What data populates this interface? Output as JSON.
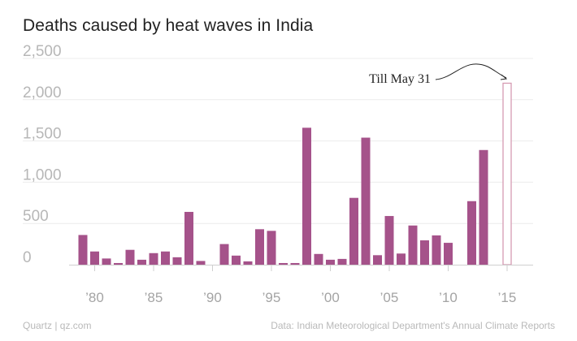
{
  "chart_data": {
    "type": "bar",
    "title": "Deaths caused by heat waves in India",
    "xlabel": "",
    "ylabel": "",
    "ylim": [
      0,
      2500
    ],
    "yticks": [
      0,
      500,
      1000,
      1500,
      2000,
      2500
    ],
    "ytick_labels": [
      "0",
      "500",
      "1,000",
      "1,500",
      "2,000",
      "2,500"
    ],
    "xticks": [
      1980,
      1985,
      1990,
      1995,
      2000,
      2005,
      2010,
      2015
    ],
    "xtick_labels": [
      "’80",
      "’85",
      "’90",
      "’95",
      "’00",
      "’05",
      "’10",
      "’15"
    ],
    "years": [
      1979,
      1980,
      1981,
      1982,
      1983,
      1984,
      1985,
      1986,
      1987,
      1988,
      1989,
      1990,
      1991,
      1992,
      1993,
      1994,
      1995,
      1996,
      1997,
      1998,
      1999,
      2000,
      2001,
      2002,
      2003,
      2004,
      2005,
      2006,
      2007,
      2008,
      2009,
      2010,
      2011,
      2012,
      2013,
      2014,
      2015
    ],
    "values": [
      360,
      160,
      75,
      20,
      180,
      60,
      140,
      160,
      90,
      640,
      45,
      0,
      250,
      110,
      40,
      430,
      410,
      20,
      20,
      1660,
      130,
      60,
      70,
      810,
      1540,
      115,
      590,
      135,
      475,
      295,
      355,
      265,
      0,
      770,
      1390,
      0,
      2200
    ],
    "highlight": {
      "year": 2015,
      "label": "Till May 31"
    },
    "grid": true,
    "colors": {
      "bar": "#a5528a",
      "highlight_stroke": "#d69ab2",
      "grid": "#ececec",
      "axis": "#cfcfcf"
    }
  },
  "footer": {
    "source_left": "Quartz | qz.com",
    "source_right": "Data: Indian Meteorological Department's Annual Climate Reports"
  }
}
